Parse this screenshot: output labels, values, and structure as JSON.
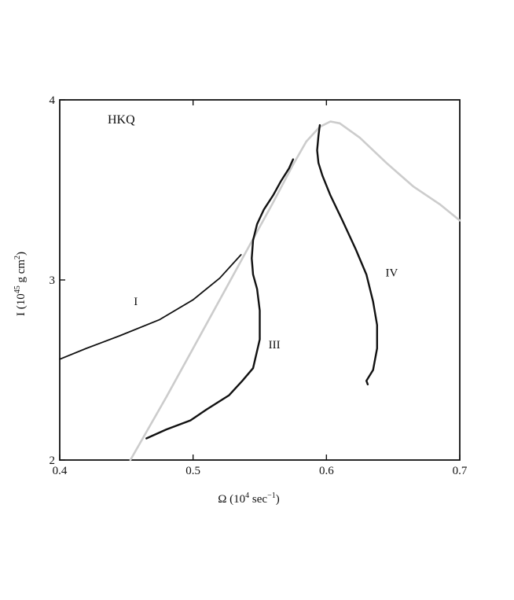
{
  "chart_data": {
    "type": "line",
    "title": "",
    "annotation": "HKQ",
    "xlabel": {
      "base": "Ω (10",
      "sup": "4",
      "mid": " sec",
      "sup2": "−1",
      "end": ")"
    },
    "ylabel": {
      "base": "I (10",
      "sup": "45",
      "mid": " g cm",
      "sup2": "2",
      "end": ")"
    },
    "xlim": [
      0.4,
      0.7
    ],
    "ylim": [
      2,
      4
    ],
    "xticks": [
      0.4,
      0.5,
      0.6,
      0.7
    ],
    "xtick_labels": [
      "0.4",
      "0.5",
      "0.6",
      "0.7"
    ],
    "yticks": [
      2,
      3,
      4
    ],
    "ytick_labels": [
      "2",
      "3",
      "4"
    ],
    "grid": false,
    "series": [
      {
        "name": "",
        "color": "#cccccc",
        "stroke_width": 2.6,
        "points": [
          [
            0.453,
            2.0
          ],
          [
            0.48,
            2.35
          ],
          [
            0.5,
            2.62
          ],
          [
            0.52,
            2.89
          ],
          [
            0.54,
            3.16
          ],
          [
            0.56,
            3.43
          ],
          [
            0.575,
            3.64
          ],
          [
            0.585,
            3.77
          ],
          [
            0.595,
            3.85
          ],
          [
            0.603,
            3.88
          ],
          [
            0.61,
            3.87
          ],
          [
            0.625,
            3.79
          ],
          [
            0.645,
            3.65
          ],
          [
            0.665,
            3.52
          ],
          [
            0.685,
            3.42
          ],
          [
            0.7,
            3.33
          ]
        ]
      },
      {
        "name": "I",
        "color": "#111111",
        "stroke_width": 1.8,
        "points": [
          [
            0.4,
            2.56
          ],
          [
            0.42,
            2.62
          ],
          [
            0.445,
            2.69
          ],
          [
            0.475,
            2.78
          ],
          [
            0.5,
            2.89
          ],
          [
            0.52,
            3.01
          ],
          [
            0.536,
            3.14
          ]
        ]
      },
      {
        "name": "III",
        "color": "#111111",
        "stroke_width": 2.4,
        "points": [
          [
            0.465,
            2.12
          ],
          [
            0.48,
            2.17
          ],
          [
            0.498,
            2.22
          ],
          [
            0.51,
            2.28
          ],
          [
            0.527,
            2.36
          ],
          [
            0.537,
            2.44
          ],
          [
            0.545,
            2.51
          ],
          [
            0.55,
            2.67
          ],
          [
            0.55,
            2.83
          ],
          [
            0.548,
            2.95
          ],
          [
            0.545,
            3.03
          ],
          [
            0.544,
            3.12
          ],
          [
            0.545,
            3.22
          ],
          [
            0.548,
            3.31
          ],
          [
            0.553,
            3.39
          ],
          [
            0.56,
            3.47
          ],
          [
            0.566,
            3.55
          ],
          [
            0.572,
            3.62
          ],
          [
            0.575,
            3.67
          ]
        ]
      },
      {
        "name": "IV",
        "color": "#111111",
        "stroke_width": 2.4,
        "points": [
          [
            0.595,
            3.86
          ],
          [
            0.594,
            3.8
          ],
          [
            0.593,
            3.72
          ],
          [
            0.594,
            3.65
          ],
          [
            0.597,
            3.58
          ],
          [
            0.603,
            3.47
          ],
          [
            0.612,
            3.33
          ],
          [
            0.622,
            3.17
          ],
          [
            0.63,
            3.03
          ],
          [
            0.635,
            2.88
          ],
          [
            0.638,
            2.75
          ],
          [
            0.638,
            2.62
          ],
          [
            0.635,
            2.5
          ],
          [
            0.63,
            2.44
          ],
          [
            0.631,
            2.42
          ]
        ]
      }
    ],
    "labels": [
      {
        "text": "I",
        "x": 0.457,
        "y": 2.86
      },
      {
        "text": "III",
        "x": 0.561,
        "y": 2.62
      },
      {
        "text": "IV",
        "x": 0.649,
        "y": 3.02
      }
    ]
  }
}
